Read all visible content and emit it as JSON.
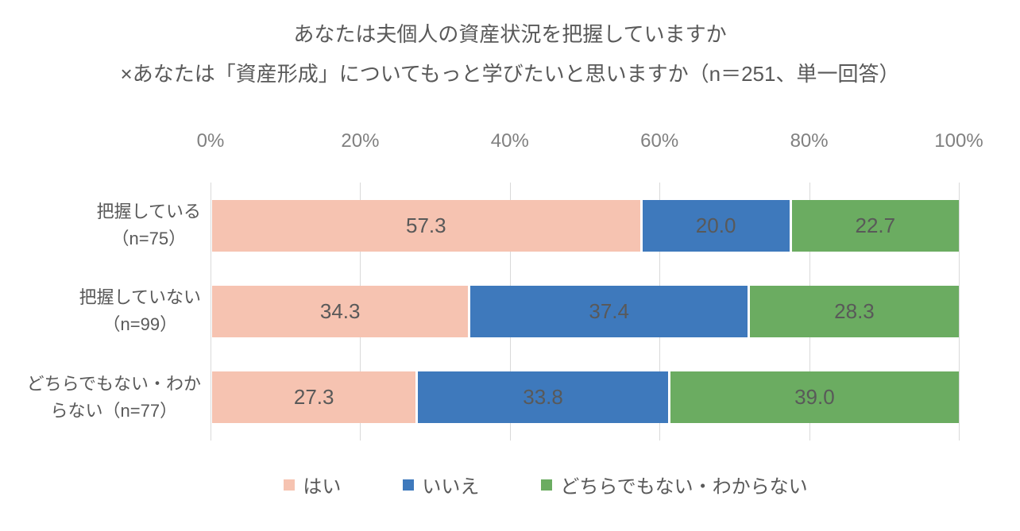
{
  "title": {
    "line1": "あなたは夫個人の資産状況を把握していますか",
    "line2": "×あなたは「資産形成」についてもっと学びたいと思いますか（n＝251、単一回答）"
  },
  "colors": {
    "hai": "#F6C3B1",
    "iie": "#3E79BC",
    "dochira": "#6BAC61",
    "grid": "#D9D9D9",
    "text": "#595959",
    "tick_text": "#808080"
  },
  "chart_data": {
    "type": "bar",
    "variant": "horizontal-stacked-100-percent",
    "title": "あなたは夫個人の資産状況を把握していますか ×あなたは「資産形成」についてもっと学びたいと思いますか（n＝251、単一回答）",
    "grid": true,
    "legend_position": "bottom",
    "x_axis": {
      "range": [
        0,
        100
      ],
      "unit": "%",
      "ticks": [
        {
          "label": "0%",
          "pos": 0
        },
        {
          "label": "20%",
          "pos": 20
        },
        {
          "label": "40%",
          "pos": 40
        },
        {
          "label": "60%",
          "pos": 60
        },
        {
          "label": "80%",
          "pos": 80
        },
        {
          "label": "100%",
          "pos": 100
        }
      ]
    },
    "series": [
      "はい",
      "いいえ",
      "どちらでもない・わからない"
    ],
    "rows": [
      {
        "label": "把握している（n=75）",
        "label_lines": [
          "把握している",
          "（n=75）"
        ],
        "segments": [
          {
            "series": "はい",
            "value": 57.3,
            "label": "57.3",
            "color": "#F6C3B1"
          },
          {
            "series": "いいえ",
            "value": 20.0,
            "label": "20.0",
            "color": "#3E79BC"
          },
          {
            "series": "どちらでもない・わからない",
            "value": 22.7,
            "label": "22.7",
            "color": "#6BAC61"
          }
        ]
      },
      {
        "label": "把握していない（n=99）",
        "label_lines": [
          "把握していない",
          "（n=99）"
        ],
        "segments": [
          {
            "series": "はい",
            "value": 34.3,
            "label": "34.3",
            "color": "#F6C3B1"
          },
          {
            "series": "いいえ",
            "value": 37.4,
            "label": "37.4",
            "color": "#3E79BC"
          },
          {
            "series": "どちらでもない・わからない",
            "value": 28.3,
            "label": "28.3",
            "color": "#6BAC61"
          }
        ]
      },
      {
        "label": "どちらでもない・わからない（n=77）",
        "label_lines": [
          "どちらでもない・わか",
          "らない（n=77）"
        ],
        "segments": [
          {
            "series": "はい",
            "value": 27.3,
            "label": "27.3",
            "color": "#F6C3B1"
          },
          {
            "series": "いいえ",
            "value": 33.8,
            "label": "33.8",
            "color": "#3E79BC"
          },
          {
            "series": "どちらでもない・わからない",
            "value": 39.0,
            "label": "39.0",
            "color": "#6BAC61"
          }
        ]
      }
    ],
    "legend": {
      "items": [
        {
          "label": "はい",
          "color": "#F6C3B1"
        },
        {
          "label": "いいえ",
          "color": "#3E79BC"
        },
        {
          "label": "どちらでもない・わからない",
          "color": "#6BAC61"
        }
      ]
    }
  }
}
